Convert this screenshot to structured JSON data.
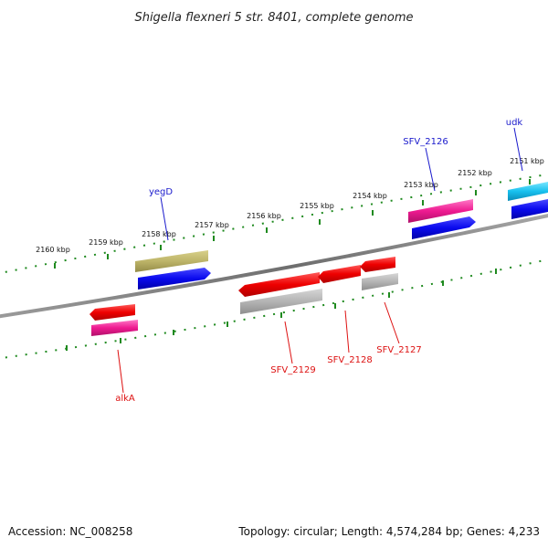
{
  "title": "Shigella flexneri 5 str. 8401, complete genome",
  "footer": {
    "accession": "Accession: NC_008258",
    "topology": "Topology: circular; Length: 4,574,284 bp; Genes: 4,233"
  },
  "ruler": {
    "ticks": [
      "2160 kbp",
      "2159 kbp",
      "2158 kbp",
      "2157 kbp",
      "2156 kbp",
      "2155 kbp",
      "2154 kbp",
      "2153 kbp",
      "2152 kbp",
      "2151 kbp"
    ]
  },
  "genes": {
    "yegD": "yegD",
    "sfv2126": "SFV_2126",
    "udk": "udk",
    "alkA": "alkA",
    "sfv2129": "SFV_2129",
    "sfv2128": "SFV_2128",
    "sfv2127": "SFV_2127"
  },
  "colors": {
    "forward_label": "#1a1acc",
    "reverse_label": "#dd1111",
    "ruler_dots": "#1f8a1f",
    "backbone": "#7a7a7a"
  }
}
